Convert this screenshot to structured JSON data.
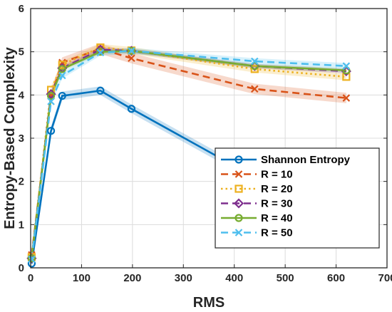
{
  "chart_data": {
    "type": "line",
    "xlabel": "RMS",
    "ylabel": "Entropy-Based Complexity",
    "xlim": [
      0,
      700
    ],
    "ylim": [
      0,
      6
    ],
    "xticks": [
      0,
      100,
      200,
      300,
      400,
      500,
      600,
      700
    ],
    "yticks": [
      0,
      1,
      2,
      3,
      4,
      5,
      6
    ],
    "grid": true,
    "legend_position": "bottom-right",
    "series": [
      {
        "name": "Shannon Entropy",
        "color": "#0072BD",
        "marker": "circle",
        "dash": "solid",
        "x": [
          2,
          40,
          62,
          137,
          198,
          440,
          620
        ],
        "y": [
          0.1,
          3.17,
          3.98,
          4.1,
          3.68,
          2.1,
          1.9
        ],
        "band": 0.1
      },
      {
        "name": "R = 10",
        "color": "#D95319",
        "marker": "x",
        "dash": "dashed",
        "x": [
          2,
          40,
          62,
          137,
          198,
          440,
          620
        ],
        "y": [
          0.3,
          3.98,
          4.75,
          5.07,
          4.85,
          4.14,
          3.93
        ],
        "band": 0.12
      },
      {
        "name": "R = 20",
        "color": "#EDB120",
        "marker": "square",
        "dash": "dotted",
        "x": [
          2,
          40,
          62,
          137,
          198,
          440,
          620
        ],
        "y": [
          0.25,
          4.12,
          4.7,
          5.1,
          5.03,
          4.6,
          4.42
        ],
        "band": 0.08
      },
      {
        "name": "R = 30",
        "color": "#7E2F8E",
        "marker": "diamond",
        "dash": "dashed",
        "x": [
          2,
          40,
          62,
          137,
          198,
          440,
          620
        ],
        "y": [
          0.22,
          4.02,
          4.62,
          5.05,
          5.02,
          4.67,
          4.55
        ],
        "band": 0.05
      },
      {
        "name": "R = 40",
        "color": "#77AC30",
        "marker": "circle",
        "dash": "solid",
        "x": [
          2,
          40,
          62,
          137,
          198,
          440,
          620
        ],
        "y": [
          0.22,
          3.98,
          4.6,
          5.0,
          5.02,
          4.67,
          4.57
        ],
        "band": 0.05
      },
      {
        "name": "R = 50",
        "color": "#4DBEEE",
        "marker": "x",
        "dash": "dashed",
        "x": [
          2,
          40,
          62,
          137,
          198,
          440,
          620
        ],
        "y": [
          0.2,
          3.85,
          4.45,
          4.98,
          5.02,
          4.78,
          4.67
        ],
        "band": 0.07
      }
    ]
  }
}
